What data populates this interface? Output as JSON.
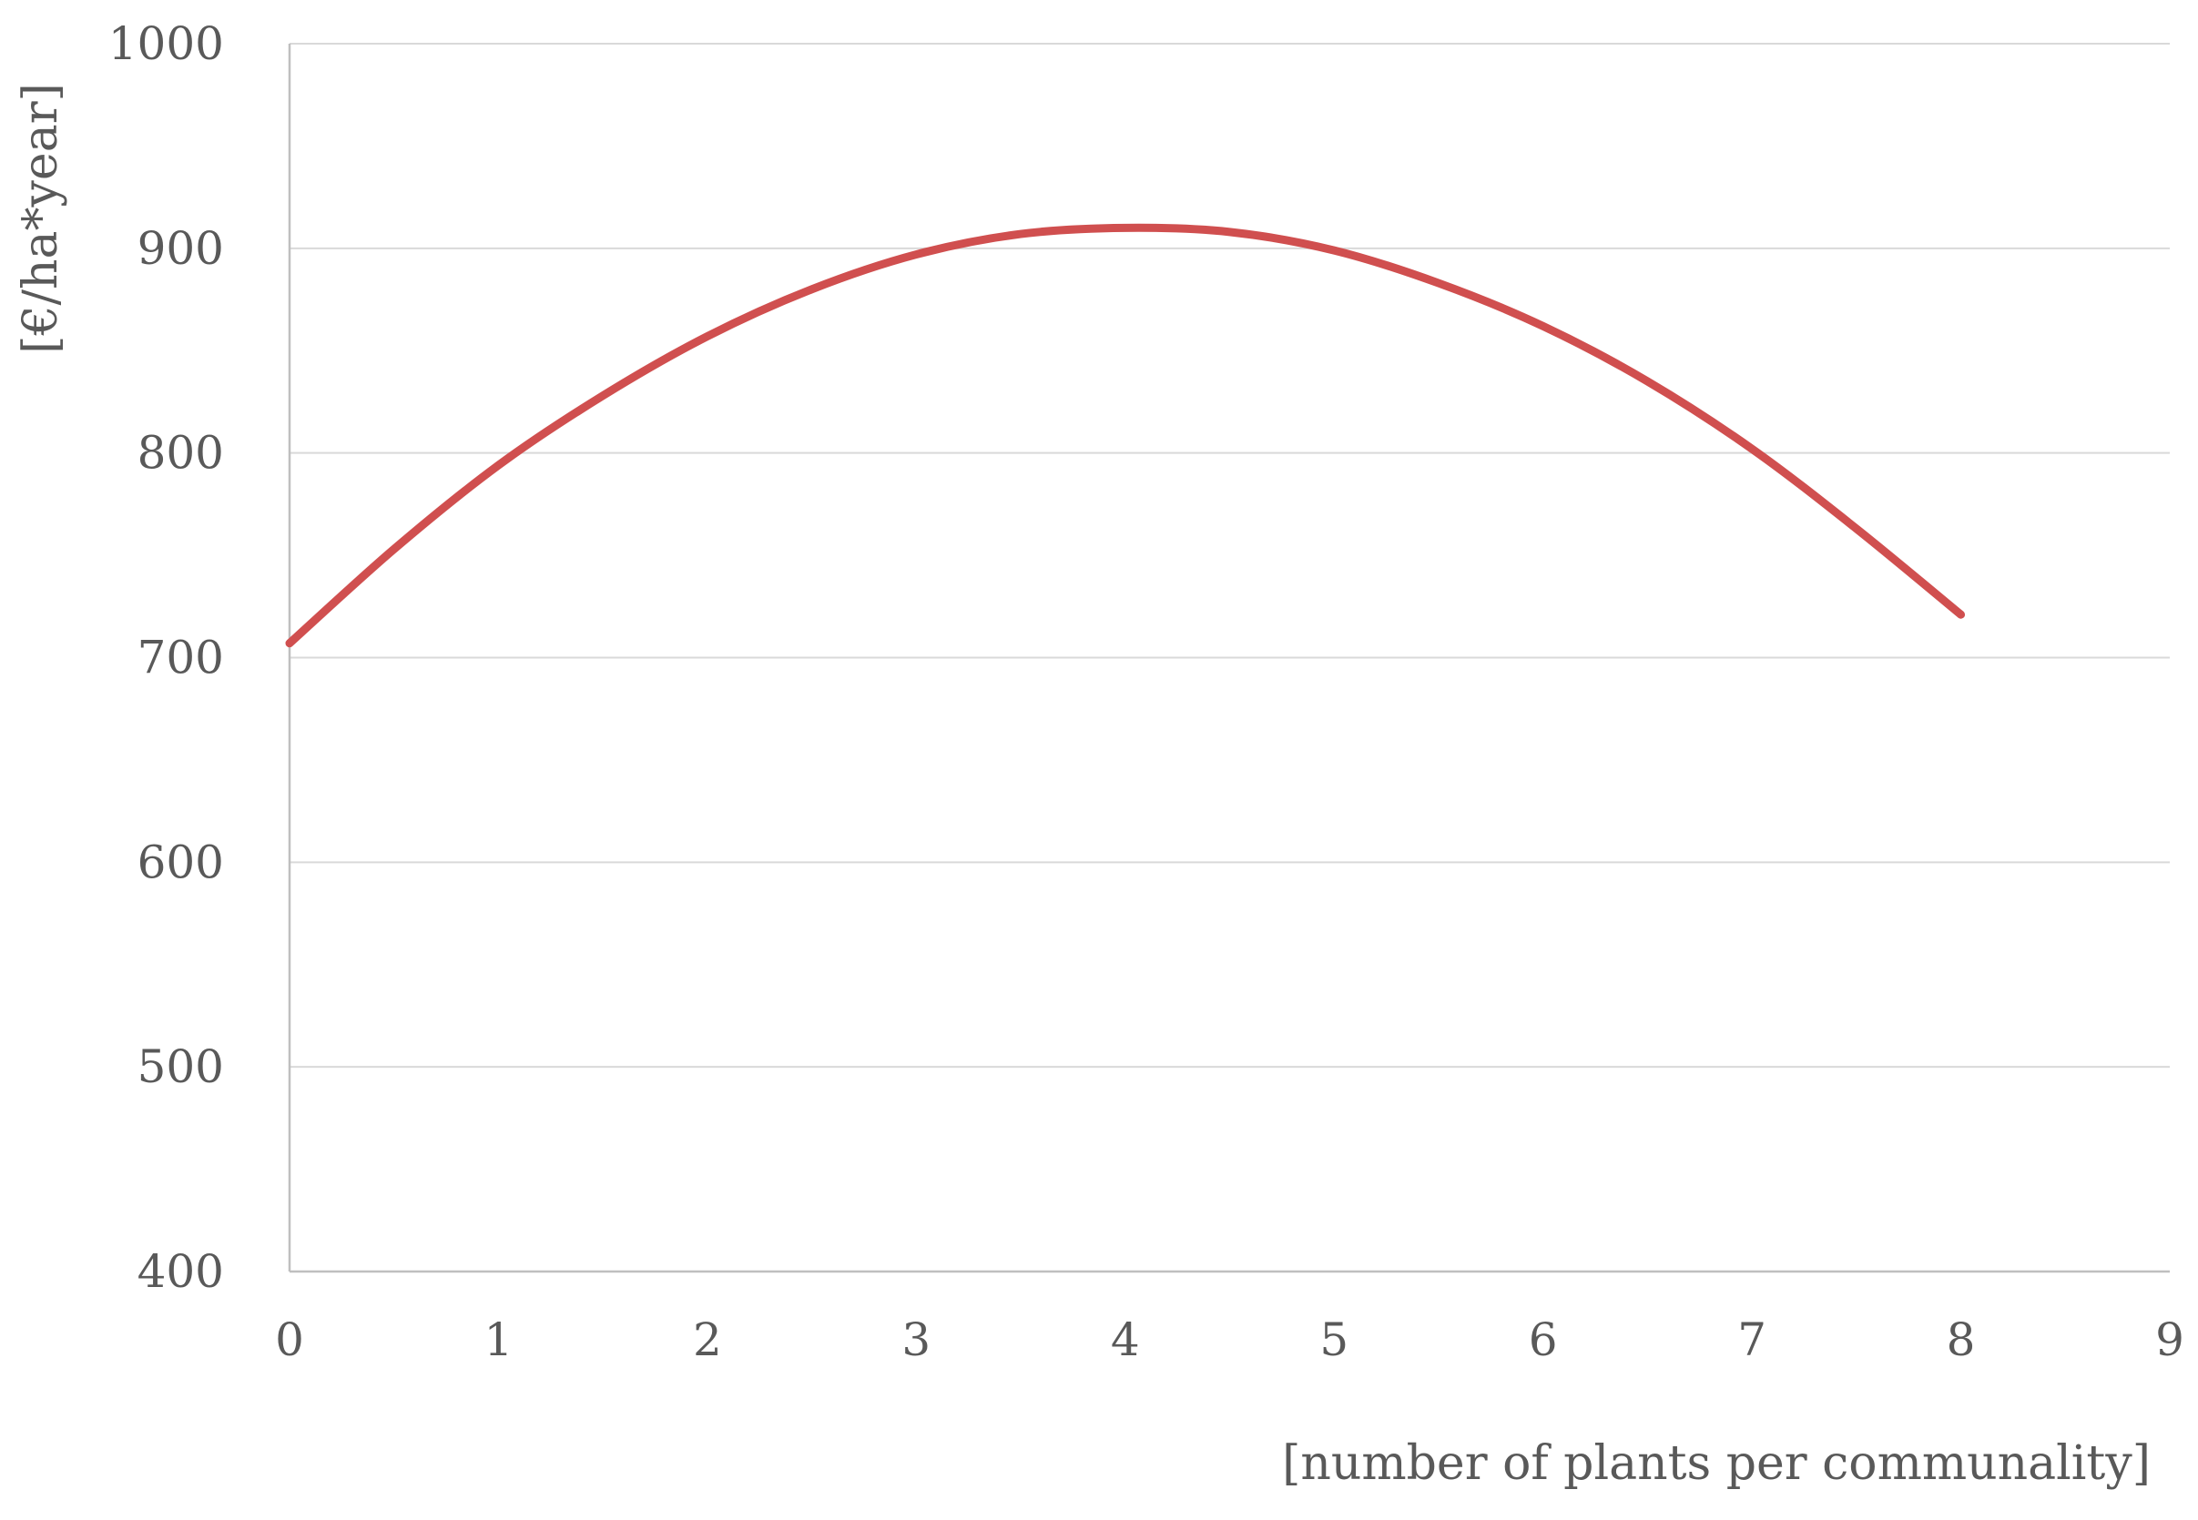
{
  "chart_data": {
    "type": "line",
    "title": "",
    "xlabel": "[number of plants per communality]",
    "ylabel": "[€/ha*year]",
    "xlim": [
      0,
      9
    ],
    "ylim": [
      400,
      1000
    ],
    "x_ticks": [
      0,
      1,
      2,
      3,
      4,
      5,
      6,
      7,
      8,
      9
    ],
    "y_ticks": [
      400,
      500,
      600,
      700,
      800,
      900,
      1000
    ],
    "grid": "horizontal",
    "legend": "none",
    "series": [
      {
        "color": "#d04f4f",
        "x": [
          0,
          0.5,
          1,
          1.5,
          2,
          2.5,
          3,
          3.5,
          4,
          4.5,
          5,
          5.5,
          6,
          6.5,
          7,
          7.5,
          8
        ],
        "y": [
          707,
          753,
          794,
          828,
          857,
          880,
          897,
          907,
          910,
          908,
          899,
          883,
          862,
          835,
          802,
          763,
          721
        ]
      }
    ]
  }
}
